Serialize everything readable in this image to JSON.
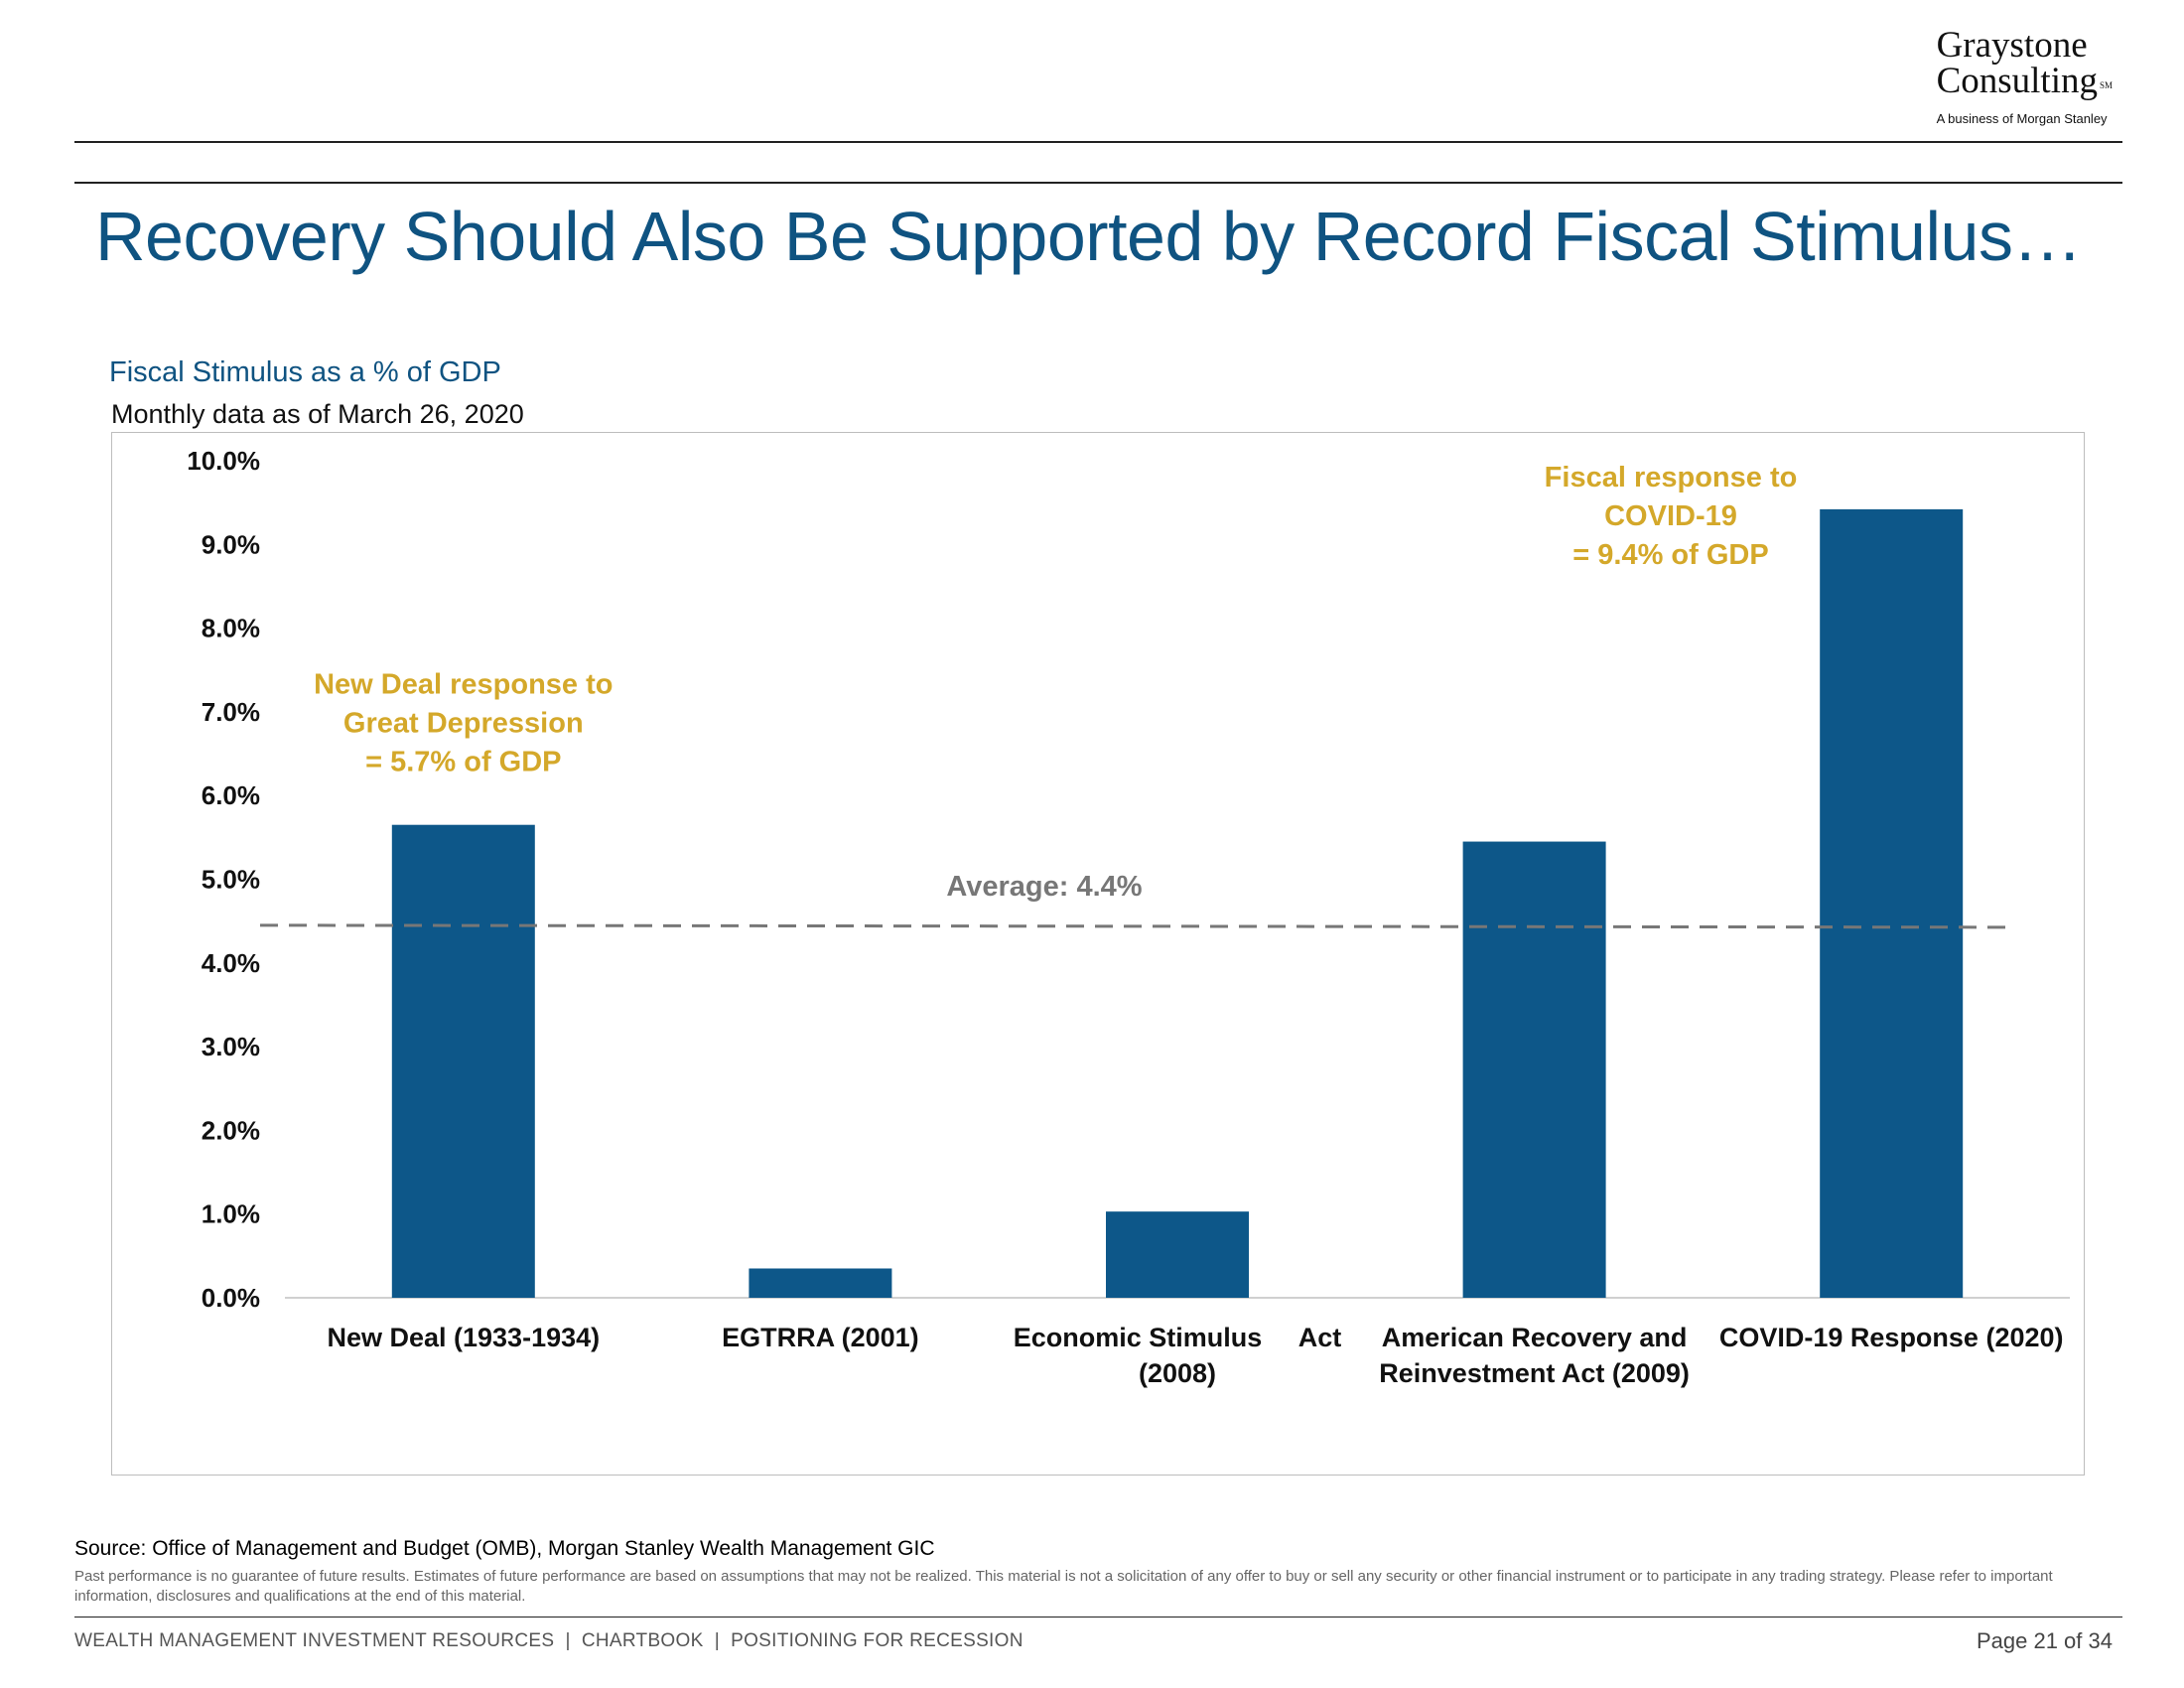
{
  "logo": {
    "line1": "Graystone",
    "line2": "Consulting",
    "mark": "SM",
    "tagline": "A business of Morgan Stanley"
  },
  "title": "Recovery Should Also Be Supported by Record Fiscal Stimulus…",
  "chart_data": {
    "type": "bar",
    "title": "Fiscal Stimulus as a % of GDP",
    "subtitle": "Monthly data as of March 26, 2020",
    "categories": [
      [
        "New Deal (1933-1934)"
      ],
      [
        "EGTRRA (2001)"
      ],
      [
        "Economic Stimulus     Act",
        "(2008)"
      ],
      [
        "American Recovery and",
        "Reinvestment Act (2009)"
      ],
      [
        "COVID-19 Response (2020)"
      ]
    ],
    "values": [
      5.65,
      0.35,
      1.03,
      5.45,
      9.42
    ],
    "ylim": [
      0,
      10
    ],
    "yticks": [
      "0.0%",
      "1.0%",
      "2.0%",
      "3.0%",
      "4.0%",
      "5.0%",
      "6.0%",
      "7.0%",
      "8.0%",
      "9.0%",
      "10.0%"
    ],
    "bar_color": "#0d5789",
    "annotation_color": "#d4a82a",
    "average": {
      "value": 4.45,
      "label": "Average: 4.4%",
      "color": "#777777"
    },
    "annotations": [
      {
        "category_index": 0,
        "lines": [
          "New Deal response to",
          "Great Depression",
          "= 5.7% of GDP"
        ]
      },
      {
        "category_index": 4,
        "lines": [
          "Fiscal response to",
          "COVID-19",
          "= 9.4% of GDP"
        ]
      }
    ]
  },
  "source": "Source: Office of Management and Budget (OMB), Morgan Stanley Wealth Management GIC",
  "disclaimer": "Past performance is no guarantee of future results. Estimates of future performance are based on assumptions that may not be realized. This material is not a solicitation of any offer to buy or sell any security or other financial instrument or to participate in any trading strategy. Please refer to important information, disclosures and qualifications at the end of this material.",
  "footer": {
    "left": "WEALTH MANAGEMENT INVESTMENT RESOURCES  |  CHARTBOOK  |  POSITIONING FOR RECESSION",
    "page": "Page 21 of 34"
  }
}
